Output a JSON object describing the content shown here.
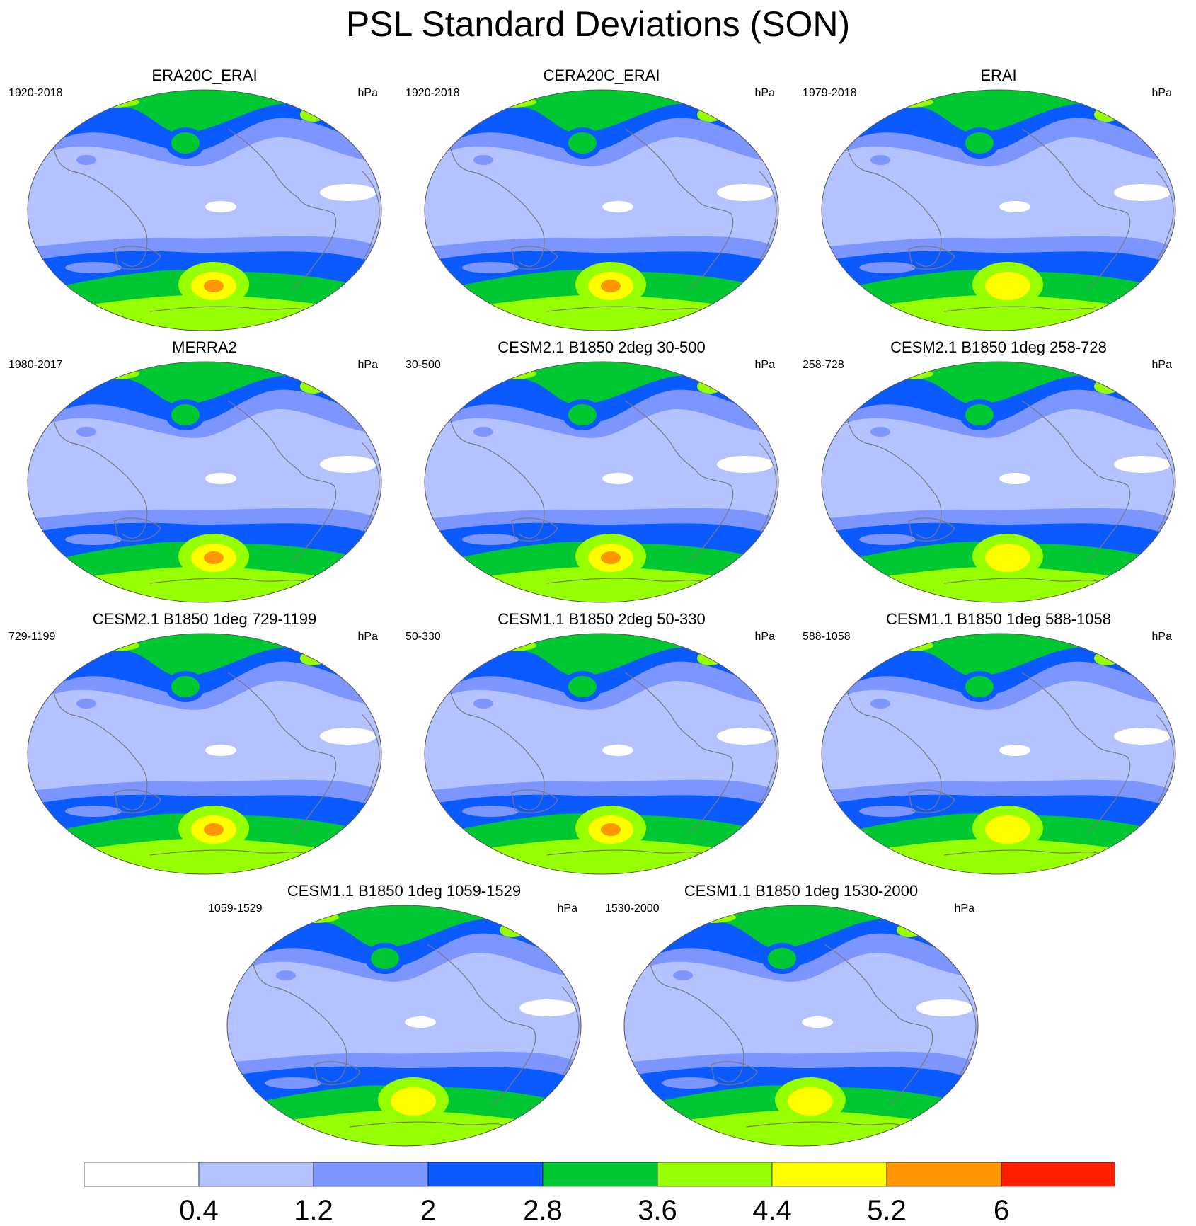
{
  "title": "PSL Standard Deviations (SON)",
  "panels": [
    {
      "title": "ERA20C_ERAI",
      "period": "1920-2018",
      "units": "hPa",
      "peak_level": 5
    },
    {
      "title": "CERA20C_ERAI",
      "period": "1920-2018",
      "units": "hPa",
      "peak_level": 5
    },
    {
      "title": "ERAI",
      "period": "1979-2018",
      "units": "hPa",
      "peak_level": 4
    },
    {
      "title": "MERRA2",
      "period": "1980-2017",
      "units": "hPa",
      "peak_level": 5
    },
    {
      "title": "CESM2.1 B1850 2deg 30-500",
      "period": "30-500",
      "units": "hPa",
      "peak_level": 5
    },
    {
      "title": "CESM2.1 B1850 1deg 258-728",
      "period": "258-728",
      "units": "hPa",
      "peak_level": 4
    },
    {
      "title": "CESM2.1 B1850 1deg 729-1199",
      "period": "729-1199",
      "units": "hPa",
      "peak_level": 5
    },
    {
      "title": "CESM1.1 B1850 2deg 50-330",
      "period": "50-330",
      "units": "hPa",
      "peak_level": 5
    },
    {
      "title": "CESM1.1 B1850 1deg 588-1058",
      "period": "588-1058",
      "units": "hPa",
      "peak_level": 4
    },
    {
      "title": "CESM1.1 B1850 1deg 1059-1529",
      "period": "1059-1529",
      "units": "hPa",
      "peak_level": 4
    },
    {
      "title": "CESM1.1 B1850 1deg 1530-2000",
      "period": "1530-2000",
      "units": "hPa",
      "peak_level": 4
    }
  ],
  "colorbar": {
    "colors": [
      "#ffffff",
      "#b4c3ff",
      "#7d96ff",
      "#0a5aff",
      "#00c832",
      "#96ff00",
      "#ffff00",
      "#ff9600",
      "#ff1e00"
    ],
    "labels": [
      "0.4",
      "1.2",
      "2",
      "2.8",
      "3.6",
      "4.4",
      "5.2",
      "6"
    ]
  },
  "map_colors": {
    "ocean_bg": "#b4c3ff",
    "coast": "#7a7a7a",
    "outline": "#555555"
  }
}
